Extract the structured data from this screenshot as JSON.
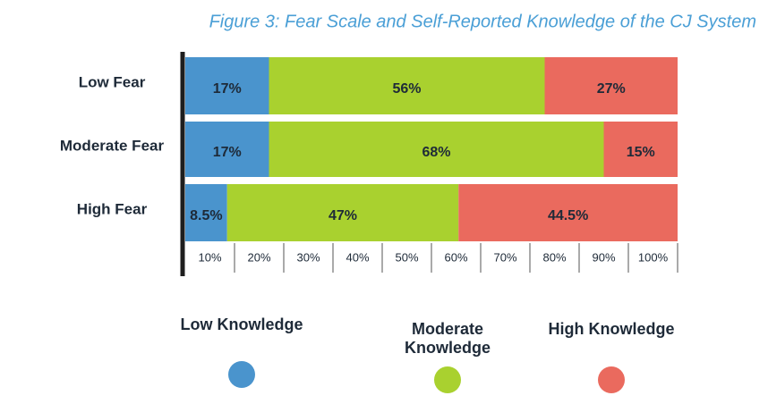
{
  "chart_data": {
    "type": "stacked-bar-horizontal",
    "title": "Figure 3: Fear Scale and Self-Reported Knowledge of the CJ System",
    "categories": [
      "Low Fear",
      "Moderate Fear",
      "High Fear"
    ],
    "series": [
      {
        "name": "Low Knowledge",
        "color": "#4a94cd",
        "values": [
          17,
          17,
          8.5
        ],
        "value_labels": [
          "17%",
          "17%",
          "8.5%"
        ]
      },
      {
        "name": "Moderate Knowledge",
        "color": "#a9d12f",
        "values": [
          56,
          68,
          47
        ],
        "value_labels": [
          "56%",
          "68%",
          "47%"
        ]
      },
      {
        "name": "High Knowledge",
        "color": "#ea6a5e",
        "values": [
          27,
          15,
          44.5
        ],
        "value_labels": [
          "27%",
          "15%",
          "44.5%"
        ]
      }
    ],
    "xlim": [
      0,
      100
    ],
    "xticks": [
      {
        "value": 10,
        "label": "10%"
      },
      {
        "value": 20,
        "label": "20%"
      },
      {
        "value": 30,
        "label": "30%"
      },
      {
        "value": 40,
        "label": "40%"
      },
      {
        "value": 50,
        "label": "50%"
      },
      {
        "value": 60,
        "label": "60%"
      },
      {
        "value": 70,
        "label": "70%"
      },
      {
        "value": 80,
        "label": "80%"
      },
      {
        "value": 90,
        "label": "90%"
      },
      {
        "value": 100,
        "label": "100%"
      }
    ],
    "legend": "bottom"
  }
}
